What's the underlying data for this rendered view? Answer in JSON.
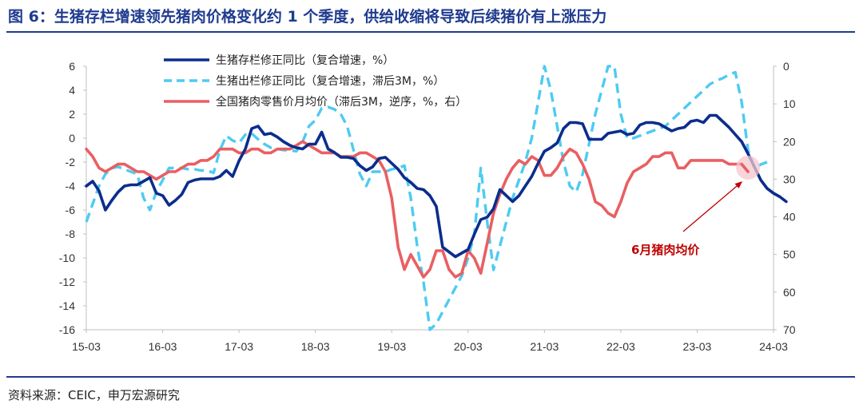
{
  "header": {
    "title": "图 6：生猪存栏增速领先猪肉价格变化约 1 个季度，供给收缩将导致后续猪价有上涨压力"
  },
  "footer": {
    "source": "资料来源：CEIC，申万宏源研究"
  },
  "chart_data": {
    "type": "line",
    "x_tick_labels": [
      "15-03",
      "16-03",
      "17-03",
      "18-03",
      "19-03",
      "20-03",
      "21-03",
      "22-03",
      "23-03",
      "24-03"
    ],
    "y_left": {
      "ylim": [
        -16,
        6
      ],
      "ticks": [
        6,
        4,
        2,
        0,
        -2,
        -4,
        -6,
        -8,
        -10,
        -12,
        -14,
        -16
      ]
    },
    "y_right": {
      "ylim": [
        0,
        70
      ],
      "reversed": true,
      "ticks": [
        0,
        10,
        20,
        30,
        40,
        50,
        60,
        70
      ]
    },
    "legend_position": "top-left",
    "annotation": {
      "text": "6月猪肉均价"
    },
    "series": [
      {
        "name": "生猪存栏修正同比（复合增速，%）",
        "axis": "left",
        "color": "#0b2d8c",
        "style": "solid",
        "start": "2015-03",
        "values": [
          -4.0,
          -3.6,
          -4.4,
          -6.0,
          -5.2,
          -4.5,
          -4.0,
          -3.9,
          -3.9,
          -3.6,
          -3.3,
          -4.6,
          -4.8,
          -5.6,
          -5.2,
          -4.7,
          -3.7,
          -3.5,
          -3.4,
          -3.4,
          -3.4,
          -3.2,
          -2.7,
          -3.2,
          -1.9,
          -0.9,
          0.8,
          1.0,
          0.3,
          0.4,
          0.1,
          -0.3,
          -0.6,
          -0.8,
          -0.9,
          -0.5,
          -0.5,
          0.5,
          -0.9,
          -1.2,
          -1.6,
          -1.6,
          -1.7,
          -2.3,
          -2.7,
          -2.4,
          -1.7,
          -1.6,
          -2.1,
          -2.6,
          -3.3,
          -3.7,
          -4.2,
          -4.3,
          -4.8,
          -5.7,
          -9.1,
          -9.5,
          -9.9,
          -9.6,
          -9.3,
          -8.0,
          -6.8,
          -6.6,
          -5.9,
          -4.3,
          -4.8,
          -5.3,
          -4.8,
          -4.0,
          -3.2,
          -2.1,
          -1.1,
          -0.8,
          -0.4,
          0.8,
          1.3,
          1.3,
          1.2,
          -0.1,
          -0.1,
          -0.1,
          0.4,
          0.5,
          0.6,
          0.3,
          0.4,
          1.1,
          1.3,
          1.3,
          1.2,
          0.9,
          0.6,
          0.8,
          0.9,
          1.4,
          1.5,
          1.3,
          1.9,
          1.9,
          1.4,
          0.9,
          0.3,
          -0.3,
          -1.3,
          -2.4,
          -3.5,
          -4.2,
          -4.6,
          -4.9,
          -5.3
        ]
      },
      {
        "name": "生猪出栏修正同比（复合增速，滞后3M，%）",
        "axis": "left",
        "color": "#4dcbf2",
        "style": "dashed",
        "start": "2015-03",
        "values": [
          -7.0,
          -5.5,
          -4.0,
          -3.0,
          -2.5,
          -2.4,
          -2.6,
          -2.8,
          -3.0,
          -5.0,
          -6.0,
          -4.5,
          -3.5,
          -2.5,
          -2.5,
          -2.5,
          -2.6,
          -2.6,
          -2.7,
          -2.7,
          -2.9,
          -1.0,
          0.2,
          -0.2,
          -0.4,
          0.3,
          0.4,
          -0.1,
          -0.5,
          -0.8,
          -0.9,
          -1.0,
          -1.0,
          -1.1,
          -0.3,
          1.0,
          1.5,
          2.5,
          2.6,
          2.4,
          2.0,
          1.0,
          -1.0,
          -3.0,
          -4.0,
          -2.8,
          -2.8,
          -2.8,
          -2.6,
          -2.5,
          -2.3,
          -5.0,
          -9.0,
          -12.0,
          -16.0,
          -15.5,
          -14.5,
          -13.5,
          -12.5,
          -11.5,
          -10.0,
          -8.0,
          -2.5,
          -7.0,
          -11.0,
          -9.0,
          -7.0,
          -5.0,
          -3.5,
          -2.0,
          0.0,
          3.0,
          6.0,
          4.0,
          1.0,
          -2.0,
          -4.0,
          -4.5,
          -3.0,
          -0.5,
          2.0,
          4.0,
          6.0,
          6.5,
          2.0,
          0.0,
          0.0,
          0.2,
          0.4,
          0.6,
          0.8,
          1.0,
          1.5,
          2.0,
          2.5,
          3.0,
          3.5,
          4.0,
          4.5,
          4.8,
          5.0,
          5.3,
          5.5,
          3.0,
          -1.0,
          -2.5,
          -2.2,
          -2.0
        ]
      },
      {
        "name": "全国猪肉零售价月均价（滞后3M，逆序，%，右）",
        "axis": "right",
        "color": "#e95f62",
        "style": "solid",
        "start": "2015-03",
        "values": [
          22,
          24,
          27,
          28,
          27,
          26,
          26,
          27,
          28,
          28,
          29,
          30,
          29,
          28,
          28,
          27,
          26,
          26,
          25,
          25,
          24,
          22,
          22,
          22,
          23,
          23,
          22,
          22,
          23,
          23,
          22,
          22,
          22,
          21,
          20,
          21,
          22,
          23,
          23,
          23,
          24,
          24,
          24,
          23,
          23,
          24,
          25,
          28,
          35,
          48,
          54,
          50,
          53,
          56,
          54,
          49,
          49,
          54,
          56,
          55,
          49,
          51,
          55,
          47,
          39,
          34,
          30,
          27,
          25,
          26,
          24,
          25,
          29,
          29,
          27,
          24,
          22,
          23,
          26,
          30,
          36,
          37,
          39,
          40,
          36,
          31,
          28,
          27,
          26,
          24,
          24,
          23,
          23,
          27,
          27,
          25,
          25,
          25,
          25,
          25,
          25,
          26,
          26,
          26,
          28
        ]
      }
    ]
  }
}
